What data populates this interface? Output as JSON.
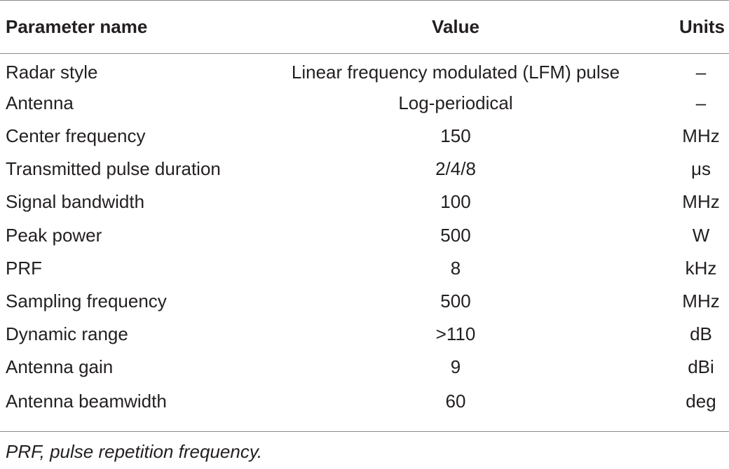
{
  "table": {
    "headers": {
      "name": "Parameter name",
      "value": "Value",
      "units": "Units"
    },
    "rows": [
      {
        "name": "Radar style",
        "value": "Linear frequency modulated (LFM) pulse",
        "units": "–"
      },
      {
        "name": "Antenna",
        "value": "Log-periodical",
        "units": "–"
      },
      {
        "name": "Center frequency",
        "value": "150",
        "units": "MHz"
      },
      {
        "name": "Transmitted pulse duration",
        "value": "2/4/8",
        "units": "μs"
      },
      {
        "name": "Signal bandwidth",
        "value": "100",
        "units": "MHz"
      },
      {
        "name": "Peak power",
        "value": "500",
        "units": "W"
      },
      {
        "name": "PRF",
        "value": "8",
        "units": "kHz"
      },
      {
        "name": "Sampling frequency",
        "value": "500",
        "units": "MHz"
      },
      {
        "name": "Dynamic range",
        "value": ">110",
        "units": "dB"
      },
      {
        "name": "Antenna gain",
        "value": "9",
        "units": "dBi"
      },
      {
        "name": "Antenna beamwidth",
        "value": "60",
        "units": "deg"
      }
    ]
  },
  "footnote": "PRF, pulse repetition frequency."
}
